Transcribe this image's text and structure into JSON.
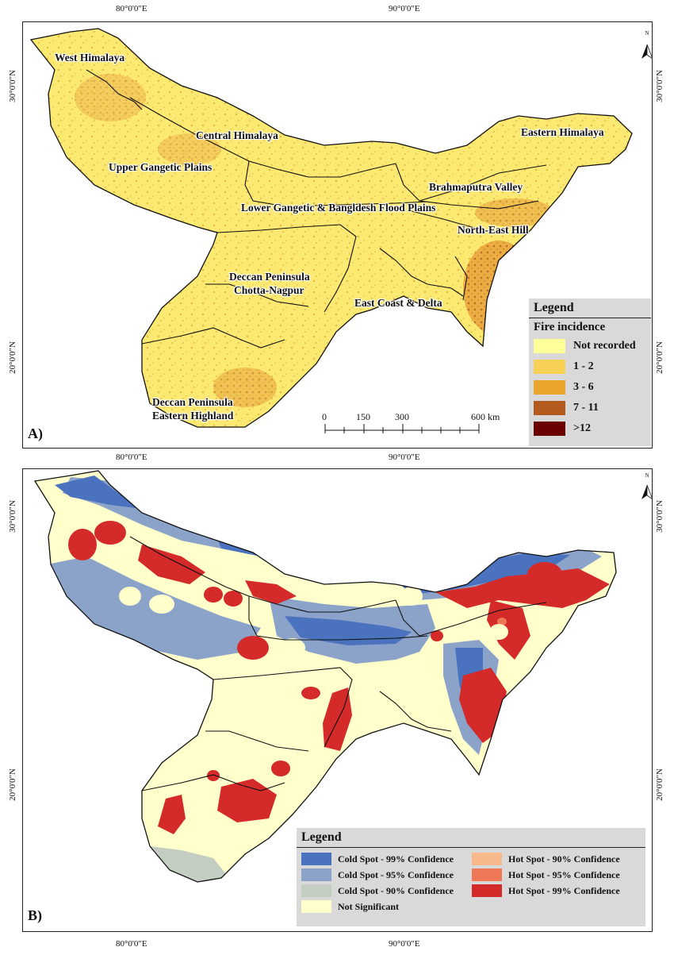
{
  "coords": {
    "top_lon_left": "80°0'0\"E",
    "top_lon_right": "90°0'0\"E",
    "mid_lon_left": "80°0'0\"E",
    "mid_lon_right": "90°0'0\"E",
    "bottom_lon_left": "80°0'0\"E",
    "bottom_lon_right": "90°0'0\"E",
    "lat_30": "30°0'0\"N",
    "lat_20": "20°0'0\"N"
  },
  "panel_a": {
    "label": "A)",
    "north": "N",
    "regions": {
      "west_himalaya": "West Himalaya",
      "central_himalaya": "Central Himalaya",
      "eastern_himalaya": "Eastern Himalaya",
      "upper_gangetic": "Upper Gangetic Plains",
      "brahmaputra": "Brahmaputra Valley",
      "lower_gangetic": "Lower Gangetic & Bangldesh Flood Plains",
      "north_east_hill": "North-East Hill",
      "deccan_chotta_1": "Deccan Peninsula",
      "deccan_chotta_2": "Chotta-Nagpur",
      "east_coast": "East Coast & Delta",
      "deccan_eastern_1": "Deccan Peninsula",
      "deccan_eastern_2": "Eastern Highland"
    },
    "scale": {
      "l0": "0",
      "l150": "150",
      "l300": "300",
      "l600": "600 km"
    },
    "legend": {
      "title": "Legend",
      "subtitle": "Fire incidence",
      "items": [
        {
          "label": "Not recorded",
          "color": "#ffff99"
        },
        {
          "label": "1 - 2",
          "color": "#f7d155"
        },
        {
          "label": "3 - 6",
          "color": "#eca52c"
        },
        {
          "label": "7 - 11",
          "color": "#b35a1f"
        },
        {
          "label": ">12",
          "color": "#6b0000"
        }
      ]
    }
  },
  "panel_b": {
    "label": "B)",
    "north": "N",
    "legend": {
      "title": "Legend",
      "items": [
        {
          "label": "Cold Spot - 99% Confidence",
          "color": "#4a72be"
        },
        {
          "label": "Hot Spot - 90% Confidence",
          "color": "#f7b88b"
        },
        {
          "label": "Cold Spot - 95% Confidence",
          "color": "#8ca3c9"
        },
        {
          "label": "Hot Spot - 95% Confidence",
          "color": "#ee7755"
        },
        {
          "label": "Cold Spot - 90% Confidence",
          "color": "#c4cdc2"
        },
        {
          "label": "Hot Spot - 99% Confidence",
          "color": "#d42a2a"
        },
        {
          "label": "Not Significant",
          "color": "#ffffcc"
        }
      ]
    }
  }
}
